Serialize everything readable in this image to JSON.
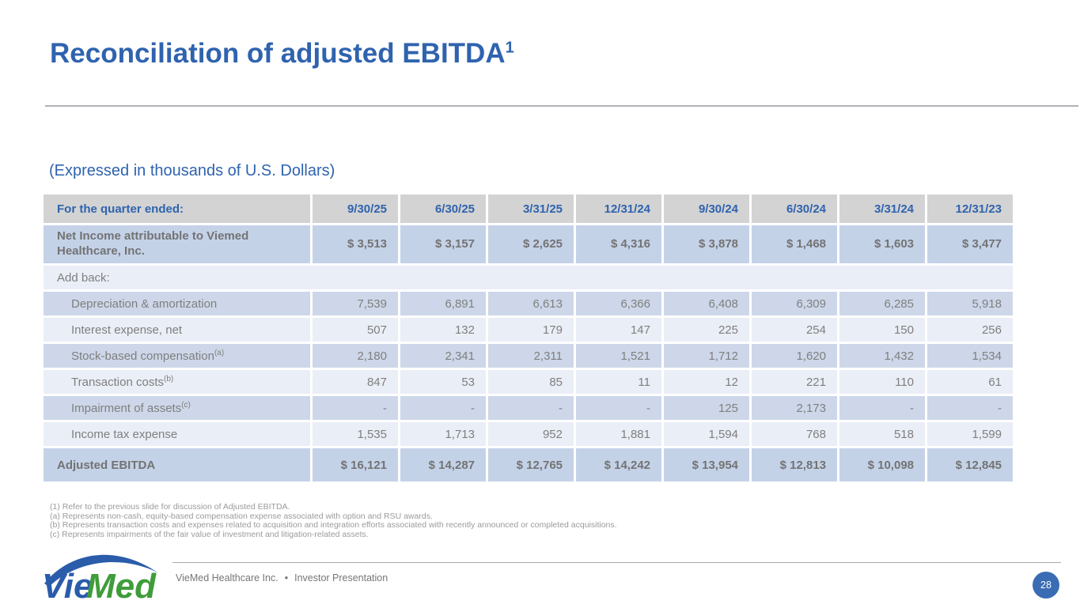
{
  "slide": {
    "title": "Reconciliation of adjusted EBITDA",
    "title_superscript": "1",
    "subtitle": "(Expressed in thousands of U.S. Dollars)"
  },
  "table": {
    "header_label": "For the quarter ended:",
    "columns": [
      "9/30/25",
      "6/30/25",
      "3/31/25",
      "12/31/24",
      "9/30/24",
      "6/30/24",
      "3/31/24",
      "12/31/23"
    ],
    "rows": [
      {
        "label": "Net Income attributable to Viemed Healthcare, Inc.",
        "style": "net",
        "values": [
          "$ 3,513",
          "$ 3,157",
          "$ 2,625",
          "$ 4,316",
          "$ 3,878",
          "$ 1,468",
          "$ 1,603",
          "$ 3,477"
        ]
      },
      {
        "label": "Add back:",
        "style": "section",
        "values": []
      },
      {
        "label": "Depreciation & amortization",
        "style": "item-dark",
        "values": [
          "7,539",
          "6,891",
          "6,613",
          "6,366",
          "6,408",
          "6,309",
          "6,285",
          "5,918"
        ]
      },
      {
        "label": "Interest expense, net",
        "style": "item-light",
        "values": [
          "507",
          "132",
          "179",
          "147",
          "225",
          "254",
          "150",
          "256"
        ]
      },
      {
        "label": "Stock-based compensation",
        "sup": "(a)",
        "style": "item-dark",
        "values": [
          "2,180",
          "2,341",
          "2,311",
          "1,521",
          "1,712",
          "1,620",
          "1,432",
          "1,534"
        ]
      },
      {
        "label": "Transaction costs",
        "sup": "(b)",
        "style": "item-light",
        "values": [
          "847",
          "53",
          "85",
          "11",
          "12",
          "221",
          "110",
          "61"
        ]
      },
      {
        "label": "Impairment of assets",
        "sup": "(c)",
        "style": "item-dark",
        "values": [
          "-",
          "-",
          "-",
          "-",
          "125",
          "2,173",
          "-",
          "-"
        ]
      },
      {
        "label": "Income tax expense",
        "style": "item-light",
        "values": [
          "1,535",
          "1,713",
          "952",
          "1,881",
          "1,594",
          "768",
          "518",
          "1,599"
        ]
      },
      {
        "label": "Adjusted EBITDA",
        "style": "adjusted",
        "values": [
          "$ 16,121",
          "$ 14,287",
          "$ 12,765",
          "$ 14,242",
          "$ 13,954",
          "$ 12,813",
          "$ 10,098",
          "$ 12,845"
        ]
      }
    ]
  },
  "footnotes": [
    "(1) Refer to the previous slide for discussion of Adjusted EBITDA.",
    "(a) Represents non-cash, equity-based compensation expense associated with option and RSU awards.",
    "(b) Represents transaction costs and expenses related to acquisition and integration efforts associated with recently announced or completed acquisitions.",
    "(c) Represents impairments of the fair value of investment and litigation-related assets."
  ],
  "footer": {
    "company": "VieMed Healthcare Inc.",
    "separator": "•",
    "label": "Investor Presentation",
    "page_number": "28"
  },
  "logo": {
    "part1": "Vie",
    "part2": "Med"
  },
  "colors": {
    "accent": "#2f63ae",
    "table-header-bg": "#d3d3d3",
    "row-strong-bg": "#c4d2e8",
    "row-dark-bg": "#cdd7e9",
    "row-light-bg": "#eaeef6",
    "table-text": "#7f7f7f",
    "page-badge-bg": "#3a6cb4",
    "logo-blue": "#2a5caa",
    "logo-green": "#3f9c3a"
  }
}
